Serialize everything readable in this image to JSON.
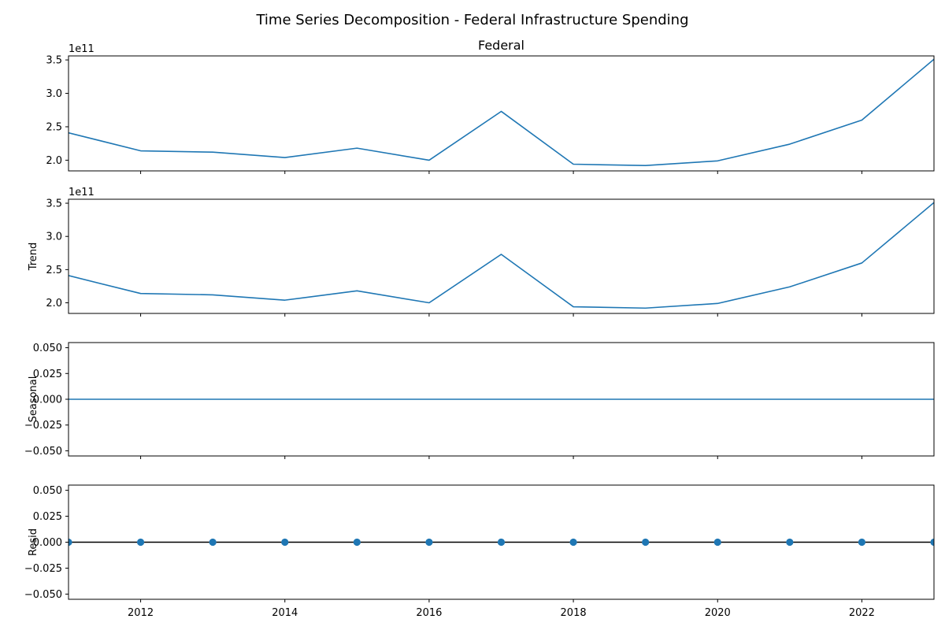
{
  "figure": {
    "suptitle": "Time Series Decomposition - Federal Infrastructure Spending"
  },
  "colors": {
    "series": "#1f77b4",
    "resid_baseline": "#000000",
    "axes": "#000000"
  },
  "chart_data": [
    {
      "type": "line",
      "panel": "observed",
      "title": "Federal",
      "ylabel": "",
      "offset_label": "1e11",
      "xlim": [
        2011,
        2023
      ],
      "ylim": [
        184000000000.0,
        356000000000.0
      ],
      "yticks": [
        200000000000.0,
        250000000000.0,
        300000000000.0,
        350000000000.0
      ],
      "ytick_labels": [
        "2.0",
        "2.5",
        "3.0",
        "3.5"
      ],
      "show_xtick_labels": false,
      "x": [
        2011,
        2012,
        2013,
        2014,
        2015,
        2016,
        2017,
        2018,
        2019,
        2020,
        2021,
        2022,
        2023
      ],
      "series": [
        {
          "values": [
            241000000000.0,
            214000000000.0,
            212000000000.0,
            204000000000.0,
            218000000000.0,
            200000000000.0,
            273000000000.0,
            194000000000.0,
            192000000000.0,
            199000000000.0,
            224000000000.0,
            260000000000.0,
            351000000000.0
          ]
        }
      ]
    },
    {
      "type": "line",
      "panel": "trend",
      "title": "",
      "ylabel": "Trend",
      "offset_label": "1e11",
      "xlim": [
        2011,
        2023
      ],
      "ylim": [
        184000000000.0,
        356000000000.0
      ],
      "yticks": [
        200000000000.0,
        250000000000.0,
        300000000000.0,
        350000000000.0
      ],
      "ytick_labels": [
        "2.0",
        "2.5",
        "3.0",
        "3.5"
      ],
      "show_xtick_labels": false,
      "x": [
        2011,
        2012,
        2013,
        2014,
        2015,
        2016,
        2017,
        2018,
        2019,
        2020,
        2021,
        2022,
        2023
      ],
      "series": [
        {
          "values": [
            241000000000.0,
            214000000000.0,
            212000000000.0,
            204000000000.0,
            218000000000.0,
            200000000000.0,
            273000000000.0,
            194000000000.0,
            192000000000.0,
            199000000000.0,
            224000000000.0,
            260000000000.0,
            351000000000.0
          ]
        }
      ]
    },
    {
      "type": "line",
      "panel": "seasonal",
      "title": "",
      "ylabel": "Seasonal",
      "offset_label": "",
      "xlim": [
        2011,
        2023
      ],
      "ylim": [
        -0.055,
        0.055
      ],
      "yticks": [
        -0.05,
        -0.025,
        0.0,
        0.025,
        0.05
      ],
      "ytick_labels": [
        "−0.050",
        "−0.025",
        "0.000",
        "0.025",
        "0.050"
      ],
      "show_xtick_labels": false,
      "x": [
        2011,
        2012,
        2013,
        2014,
        2015,
        2016,
        2017,
        2018,
        2019,
        2020,
        2021,
        2022,
        2023
      ],
      "series": [
        {
          "values": [
            0,
            0,
            0,
            0,
            0,
            0,
            0,
            0,
            0,
            0,
            0,
            0,
            0
          ]
        }
      ]
    },
    {
      "type": "scatter",
      "panel": "resid",
      "title": "",
      "ylabel": "Resid",
      "offset_label": "",
      "xlim": [
        2011,
        2023
      ],
      "ylim": [
        -0.055,
        0.055
      ],
      "yticks": [
        -0.05,
        -0.025,
        0.0,
        0.025,
        0.05
      ],
      "ytick_labels": [
        "−0.050",
        "−0.025",
        "0.000",
        "0.025",
        "0.050"
      ],
      "xticks": [
        2012,
        2014,
        2016,
        2018,
        2020,
        2022
      ],
      "xtick_labels": [
        "2012",
        "2014",
        "2016",
        "2018",
        "2020",
        "2022"
      ],
      "show_xtick_labels": true,
      "baseline": 0,
      "x": [
        2011,
        2012,
        2013,
        2014,
        2015,
        2016,
        2017,
        2018,
        2019,
        2020,
        2021,
        2022,
        2023
      ],
      "series": [
        {
          "values": [
            0,
            0,
            0,
            0,
            0,
            0,
            0,
            0,
            0,
            0,
            0,
            0,
            0
          ]
        }
      ]
    }
  ]
}
